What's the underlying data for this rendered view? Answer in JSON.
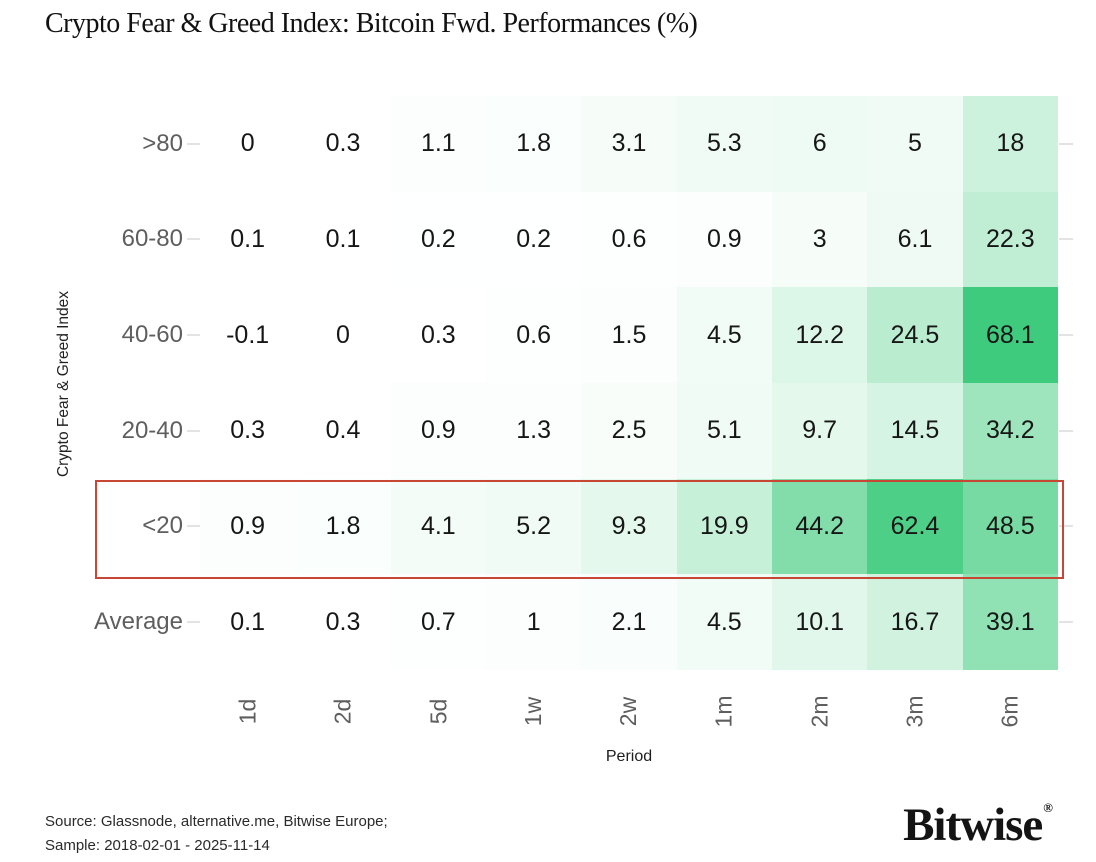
{
  "chart_data": {
    "type": "heatmap",
    "title": "Crypto Fear & Greed Index: Bitcoin Fwd. Performances (%)",
    "ylabel": "Crypto Fear & Greed Index",
    "xlabel": "Period",
    "columns": [
      "1d",
      "2d",
      "5d",
      "1w",
      "2w",
      "1m",
      "2m",
      "3m",
      "6m"
    ],
    "rows": [
      ">80",
      "60-80",
      "40-60",
      "20-40",
      "<20",
      "Average"
    ],
    "values": [
      [
        0,
        0.3,
        1.1,
        1.8,
        3.1,
        5.3,
        6,
        5,
        18
      ],
      [
        0.1,
        0.1,
        0.2,
        0.2,
        0.6,
        0.9,
        3,
        6.1,
        22.3
      ],
      [
        -0.1,
        0,
        0.3,
        0.6,
        1.5,
        4.5,
        12.2,
        24.5,
        68.1
      ],
      [
        0.3,
        0.4,
        0.9,
        1.3,
        2.5,
        5.1,
        9.7,
        14.5,
        34.2
      ],
      [
        0.9,
        1.8,
        4.1,
        5.2,
        9.3,
        19.9,
        44.2,
        62.4,
        48.5
      ],
      [
        0.1,
        0.3,
        0.7,
        1,
        2.1,
        4.5,
        10.1,
        16.7,
        39.1
      ]
    ],
    "highlight_row_index": 4,
    "highlight_row_label": "<20",
    "colormap": {
      "min_value": 0,
      "max_value": 68.1,
      "min_color": "#ffffff",
      "max_color": "#3ecb7d"
    },
    "highlight_color": "#c74634",
    "grid": false,
    "legend": "none",
    "tick_color": "#e3e3e3"
  },
  "footer": {
    "source_line1": "Source: Glassnode, alternative.me, Bitwise Europe;",
    "source_line2": "Sample: 2018-02-01 - 2025-11-14"
  },
  "logo": {
    "text": "Bitwise",
    "registered": "®"
  }
}
